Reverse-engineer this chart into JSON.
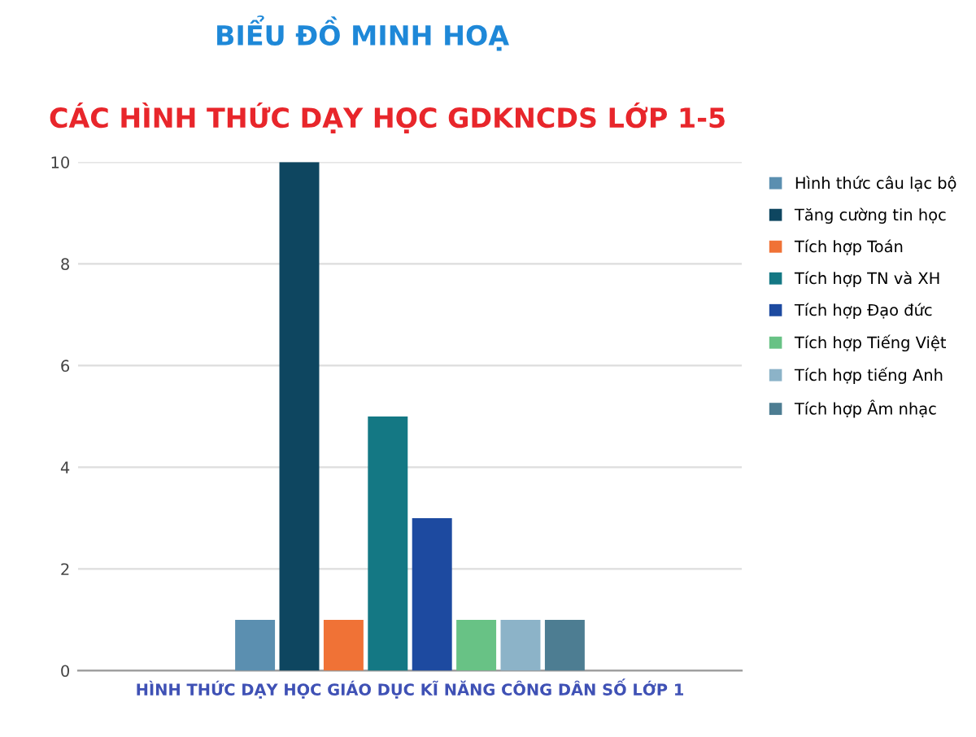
{
  "chart_data": {
    "type": "bar",
    "title": "BIỂU ĐỒ MINH HOẠ",
    "subtitle": "CÁC HÌNH THỨC DẠY HỌC GDKNCDS LỚP 1-5",
    "categories": [
      "HÌNH THỨC DẠY HỌC GIÁO DỤC KĨ NĂNG CÔNG DÂN SỐ LỚP 1"
    ],
    "series": [
      {
        "name": "Hình thức câu lạc bộ",
        "color": "#5b8fb0",
        "values": [
          1
        ]
      },
      {
        "name": "Tăng cường tin học",
        "color": "#0e4660",
        "values": [
          10
        ]
      },
      {
        "name": "Tích hợp Toán",
        "color": "#f07236",
        "values": [
          1
        ]
      },
      {
        "name": "Tích hợp TN và XH",
        "color": "#147884",
        "values": [
          5
        ]
      },
      {
        "name": "Tích hợp Đạo đức",
        "color": "#1d4aa0",
        "values": [
          3
        ]
      },
      {
        "name": "Tích hợp Tiếng Việt",
        "color": "#68c285",
        "values": [
          1
        ]
      },
      {
        "name": "Tích hợp tiếng Anh",
        "color": "#8cb3c8",
        "values": [
          1
        ]
      },
      {
        "name": "Tích hợp Âm nhạc",
        "color": "#4d7d92",
        "values": [
          1
        ]
      }
    ],
    "ylim": [
      0,
      10
    ],
    "yticks": [
      0,
      2,
      4,
      6,
      8,
      10
    ],
    "grid": "y",
    "legend": "right"
  }
}
